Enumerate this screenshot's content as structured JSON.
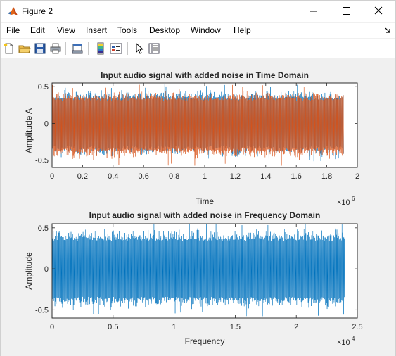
{
  "window": {
    "title": "Figure 2"
  },
  "menu": {
    "file": "File",
    "edit": "Edit",
    "view": "View",
    "insert": "Insert",
    "tools": "Tools",
    "desktop": "Desktop",
    "window": "Window",
    "help": "Help"
  },
  "toolbar": {
    "icons": [
      "new-figure-icon",
      "open-file-icon",
      "save-icon",
      "print-icon",
      "print-preview-icon",
      "colorbar-icon",
      "legend-icon",
      "pointer-icon",
      "property-editor-icon"
    ]
  },
  "colors": {
    "series_blue": "#0072BD",
    "series_orange": "#D95319"
  },
  "chart_data": [
    {
      "type": "line",
      "title": "Input audio signal with added noise in Time Domain",
      "xlabel": "Time",
      "ylabel": "Amplitude A",
      "x_exponent": "×10^6",
      "xlim": [
        0,
        2000000
      ],
      "ylim": [
        -0.6,
        0.55
      ],
      "xticks": [
        "0",
        "0.2",
        "0.4",
        "0.6",
        "0.8",
        "1",
        "1.2",
        "1.4",
        "1.6",
        "1.8",
        "2"
      ],
      "yticks": [
        "0.5",
        "0",
        "-0.5"
      ],
      "x_exponent_label": "6",
      "series": [
        {
          "color": "#0072BD",
          "x_range": [
            0,
            1910000
          ],
          "envelope": [
            -0.5,
            0.52
          ]
        },
        {
          "color": "#D95319",
          "x_range": [
            0,
            1910000
          ],
          "envelope": [
            -0.55,
            0.5
          ]
        }
      ]
    },
    {
      "type": "line",
      "title": "Input audio signal with added noise in Frequency Domain",
      "xlabel": "Frequency",
      "ylabel": "Amplitude",
      "x_exponent": "×10^4",
      "xlim": [
        0,
        25000
      ],
      "ylim": [
        -0.6,
        0.55
      ],
      "xticks": [
        "0",
        "0.5",
        "1",
        "1.5",
        "2",
        "2.5"
      ],
      "yticks": [
        "0.5",
        "0",
        "-0.5"
      ],
      "x_exponent_label": "4",
      "series": [
        {
          "color": "#0072BD",
          "x_range": [
            0,
            24000
          ],
          "envelope": [
            -0.55,
            0.55
          ]
        }
      ]
    }
  ]
}
